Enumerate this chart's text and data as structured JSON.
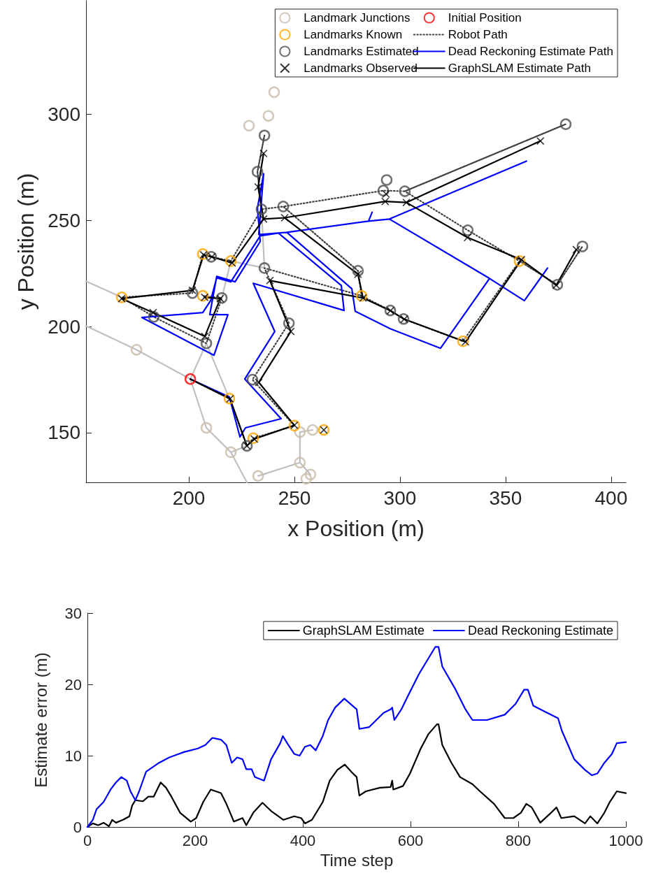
{
  "chart_data": [
    {
      "type": "scatter",
      "xlabel": "x Position (m)",
      "ylabel": "y Position (m)",
      "xlim": [
        151.3,
        407
      ],
      "xticks": [
        200,
        250,
        300,
        350,
        400
      ],
      "ylim": [
        126.6,
        353.6
      ],
      "yticks": [
        150,
        200,
        250,
        300
      ],
      "legend": "top right",
      "series": [
        {
          "type": "line",
          "color": "#c0c0c0",
          "marker": "none",
          "line_style": "solid",
          "x": [
            151.3,
            168.2,
            null,
            151.3,
            175.2,
            200.7,
            219.2,
            null,
            200.7,
            208.3,
            219.2,
            null,
            200.7,
            208.3,
            219.9,
            227.5,
            null,
            219.9,
            227.5,
            null,
            232.8,
            252.6,
            252.6,
            258.6,
            null,
            252.6,
            257.6,
            null,
            219.9,
            215.6,
            null,
            234.4,
            235.8,
            219.9
          ],
          "values": [
            221.4,
            213.8,
            null,
            200.3,
            189.1,
            175.3,
            166.1,
            null,
            175.3,
            192.1,
            166.1,
            null,
            175.3,
            152.3,
            140.8,
            143.8,
            null,
            140.8,
            126.6,
            null,
            129.6,
            135.9,
            150.3,
            151.3,
            null,
            135.9,
            130.3,
            null,
            230.9,
            213.5,
            null,
            255.3,
            227.6,
            230.9
          ]
        },
        {
          "name": "Landmark Junctions",
          "color": "#c8bba8",
          "marker": "circle",
          "x": [
            175.2,
            208.3,
            219.9,
            232.8,
            252.6,
            258.6,
            252.6,
            257.6,
            255.6,
            228.5,
            237.7,
            240.4
          ],
          "values": [
            189.1,
            152.3,
            140.8,
            129.6,
            150.3,
            151.3,
            135.9,
            130.3,
            128.3,
            294.7,
            299.3,
            310.5
          ]
        },
        {
          "name": "Landmarks Known",
          "color": "#ffa500",
          "marker": "circle",
          "x": [
            219.2,
            230.5,
            250.0,
            263.9,
            206.6,
            219.9,
            168.2,
            206.6,
            281.8,
            329.8,
            356.6
          ],
          "values": [
            166.1,
            147.4,
            153.3,
            151.3,
            234.2,
            230.9,
            213.8,
            214.5,
            214.5,
            193.1,
            230.9
          ]
        },
        {
          "name": "Landmarks Estimated",
          "color": "#4d4d4d",
          "marker": "circle",
          "x": [
            235.8,
            232.5,
            234.4,
            210.6,
            235.8,
            201.7,
            215.6,
            244.7,
            293.7,
            292.1,
            302.3,
            280.1,
            378.5,
            332.1,
            374.5,
            386.4,
            183.4,
            208.3,
            227.5,
            230.1,
            247.4,
            295.4,
            301.7
          ],
          "values": [
            290.1,
            273.0,
            255.3,
            232.9,
            227.6,
            215.8,
            213.5,
            256.6,
            269.1,
            264.1,
            263.8,
            226.3,
            295.4,
            245.4,
            219.7,
            237.8,
            204.6,
            192.1,
            143.8,
            175.0,
            201.6,
            207.6,
            203.6
          ]
        },
        {
          "name": "Landmarks Observed",
          "color": "#000000",
          "marker": "cross",
          "x": [
            219.5,
            227.5,
            231.0,
            250.0,
            233.1,
            248.3,
            238.4,
            282.5,
            295.5,
            302.0,
            331.0,
            357.5,
            374.0,
            383.5,
            332.0,
            303.0,
            366.5,
            293.0,
            245.4,
            280.1,
            235.4,
            232.8,
            235.4,
            220.5,
            210.9,
            207.0,
            201.7,
            168.2,
            183.1,
            207.6,
            214.9,
            207.5,
            263.9,
            293.4
          ],
          "values": [
            166.0,
            143.8,
            147.0,
            153.5,
            173.7,
            197.7,
            221.7,
            213.5,
            207.5,
            203.5,
            192.8,
            231.5,
            219.5,
            236.3,
            242.0,
            258.5,
            287.5,
            259.0,
            251.3,
            224.7,
            250.7,
            265.8,
            281.6,
            230.0,
            232.9,
            233.8,
            217.1,
            213.2,
            206.6,
            195.4,
            213.2,
            213.8,
            151.3,
            262.5
          ]
        },
        {
          "name": "Initial Position",
          "color": "#ff0000",
          "marker": "circle",
          "x": [
            200.7
          ],
          "values": [
            175.3
          ]
        },
        {
          "name": "Robot Path",
          "type": "line",
          "color": "#404040",
          "marker": "none",
          "line_style": "dotted",
          "x": [
            200.7,
            219.2,
            227.5,
            230.5,
            250.0,
            230.1,
            247.4,
            235.8,
            281.8,
            295.4,
            301.7,
            329.8,
            356.6,
            374.5,
            386.4,
            374.5,
            356.6,
            332.1,
            302.3,
            378.5,
            302.3,
            292.1,
            244.7,
            280.1,
            281.8,
            280.1,
            244.7,
            234.4,
            232.5,
            235.8,
            232.5,
            234.4,
            219.9,
            210.6,
            206.6,
            201.7,
            168.2,
            183.4,
            208.3,
            215.6,
            206.6
          ],
          "values": [
            175.3,
            166.1,
            143.8,
            147.4,
            153.3,
            175.0,
            201.6,
            227.6,
            214.5,
            207.6,
            203.6,
            193.1,
            230.9,
            219.7,
            237.8,
            219.7,
            230.9,
            245.4,
            263.8,
            295.4,
            263.8,
            264.1,
            256.6,
            226.3,
            214.5,
            226.3,
            256.6,
            255.3,
            273.0,
            290.1,
            273.0,
            255.3,
            230.9,
            232.9,
            234.2,
            215.8,
            213.8,
            204.6,
            192.1,
            213.5,
            214.5
          ]
        },
        {
          "name": "Dead Reckoning Estimate Path",
          "type": "line",
          "color": "#0000ff",
          "marker": "none",
          "line_style": "solid",
          "x": [
            200.7,
            219.2,
            224.2,
            226.8,
            243.7,
            226.5,
            240.7,
            230.5,
            273.5,
            272.2,
            242.4,
            233.8,
            219.9,
            213.2,
            210.3,
            206.6,
            177.8,
            211.9,
            218.5,
            209.9,
            213.2,
            221.9,
            233.8,
            232.5,
            235.4,
            233.1,
            246.4,
            285.1,
            286.8,
            285.1,
            295.0,
            359.9,
            295.0,
            342.4,
            358.9,
            369.9,
            358.9,
            342.4,
            319.2,
            295.4,
            278.8,
            277.2,
            246.4
          ],
          "values": [
            175.3,
            166.8,
            148.0,
            152.3,
            156.6,
            175.3,
            197.7,
            220.4,
            207.6,
            219.4,
            244.1,
            242.8,
            221.1,
            223.0,
            212.2,
            206.6,
            204.3,
            186.5,
            205.6,
            205.6,
            223.7,
            221.1,
            240.1,
            255.9,
            272.0,
            243.4,
            244.4,
            249.7,
            253.9,
            249.7,
            250.7,
            278.0,
            250.7,
            222.7,
            212.2,
            227.6,
            212.2,
            222.7,
            189.8,
            199.0,
            207.2,
            217.8,
            244.4
          ]
        },
        {
          "name": "GraphSLAM Estimate Path",
          "type": "line",
          "color": "#000000",
          "marker": "none",
          "line_style": "solid",
          "x": [
            200.7,
            219.5,
            227.5,
            231.0,
            250.0,
            233.1,
            248.3,
            238.4,
            282.5,
            295.5,
            302.0,
            331.0,
            357.5,
            374.0,
            383.5,
            374.0,
            357.5,
            332.0,
            303.0,
            366.5,
            303.0,
            293.0,
            245.4,
            280.1,
            282.5,
            280.1,
            245.4,
            235.4,
            232.8,
            235.4,
            232.8,
            235.4,
            220.5,
            210.9,
            207.0,
            201.7,
            168.2,
            183.1,
            207.6,
            214.9,
            207.5
          ],
          "values": [
            175.3,
            166.0,
            143.8,
            147.0,
            153.5,
            173.7,
            197.7,
            221.7,
            213.5,
            207.5,
            203.5,
            192.8,
            231.5,
            219.5,
            236.3,
            219.5,
            231.5,
            242.0,
            258.5,
            287.5,
            258.5,
            259.0,
            251.3,
            224.7,
            213.5,
            224.7,
            251.3,
            250.7,
            265.8,
            281.6,
            265.8,
            250.7,
            230.0,
            232.9,
            233.8,
            217.1,
            213.2,
            206.6,
            195.4,
            213.2,
            213.8
          ]
        }
      ]
    },
    {
      "type": "line",
      "xlabel": "Time step",
      "ylabel": "Estimate error (m)",
      "xlim": [
        0,
        1000
      ],
      "xticks": [
        0,
        200,
        400,
        600,
        800,
        1000
      ],
      "ylim": [
        0,
        30
      ],
      "yticks": [
        0,
        10,
        20,
        30
      ],
      "legend": "top right",
      "marker": "none",
      "line_style": "solid",
      "series": [
        {
          "name": "GraphSLAM Estimate",
          "color": "#000000",
          "x": [
            0,
            10,
            20,
            30,
            40,
            46,
            53,
            66,
            78,
            83,
            89,
            103,
            113,
            123,
            136,
            146,
            156,
            172,
            192,
            202,
            215,
            229,
            248,
            258,
            272,
            288,
            295,
            308,
            325,
            341,
            364,
            384,
            397,
            404,
            417,
            437,
            450,
            464,
            478,
            490,
            500,
            505,
            517,
            543,
            563,
            566,
            568,
            586,
            599,
            619,
            633,
            649,
            652,
            659,
            676,
            692,
            715,
            729,
            755,
            775,
            791,
            805,
            815,
            825,
            841,
            861,
            871,
            880,
            904,
            924,
            934,
            947,
            960,
            970,
            983,
            1000
          ],
          "values": [
            0,
            0.5,
            0.25,
            0.6,
            0.1,
            1.0,
            0.6,
            1.0,
            1.5,
            3.0,
            3.75,
            3.6,
            4.25,
            4.25,
            6.25,
            5.5,
            4.25,
            2.0,
            0.75,
            1.25,
            3.5,
            5.25,
            4.75,
            3.25,
            0.75,
            1.25,
            0.25,
            2.0,
            3.4,
            2.25,
            1.0,
            1.5,
            1.25,
            0.5,
            1.0,
            3.5,
            6.5,
            8.0,
            8.75,
            7.75,
            7.0,
            4.4,
            5.0,
            5.5,
            5.6,
            6.5,
            5.25,
            5.75,
            7.5,
            11.0,
            13.0,
            14.4,
            14.4,
            11.5,
            9.0,
            7.0,
            6.0,
            5.0,
            3.25,
            1.25,
            1.25,
            2.0,
            3.25,
            2.75,
            0.6,
            2.0,
            2.75,
            1.25,
            1.5,
            0.5,
            1.5,
            0.5,
            2.0,
            3.5,
            5.0,
            4.75
          ]
        },
        {
          "name": "Dead Reckoning Estimate",
          "color": "#0000ff",
          "x": [
            0,
            10,
            17,
            30,
            43,
            53,
            63,
            73,
            80,
            89,
            96,
            109,
            133,
            152,
            179,
            205,
            219,
            232,
            248,
            258,
            268,
            278,
            288,
            295,
            305,
            311,
            328,
            341,
            358,
            363,
            371,
            384,
            394,
            404,
            414,
            424,
            437,
            447,
            460,
            477,
            500,
            505,
            523,
            550,
            563,
            566,
            570,
            583,
            596,
            616,
            636,
            646,
            652,
            659,
            682,
            702,
            715,
            742,
            775,
            795,
            811,
            818,
            828,
            854,
            874,
            881,
            904,
            924,
            937,
            947,
            960,
            974,
            983,
            1000
          ],
          "values": [
            0,
            1.0,
            2.5,
            3.5,
            5.25,
            6.25,
            7.0,
            6.5,
            5.0,
            3.75,
            5.0,
            7.75,
            9.0,
            9.75,
            10.5,
            11.0,
            11.5,
            12.5,
            12.25,
            11.5,
            9.0,
            9.75,
            9.5,
            8.1,
            8.1,
            7.0,
            6.5,
            9.5,
            11.75,
            12.75,
            11.75,
            10.25,
            10.0,
            11.25,
            11.5,
            10.75,
            12.75,
            15.0,
            16.75,
            18.0,
            16.5,
            13.75,
            14.0,
            16.0,
            16.5,
            16.75,
            15.0,
            16.5,
            18.5,
            21.5,
            24.0,
            25.25,
            25.25,
            22.5,
            19.5,
            16.5,
            15.0,
            15.0,
            15.75,
            17.25,
            19.25,
            19.25,
            17.0,
            16.0,
            15.25,
            13.5,
            9.5,
            8.0,
            7.25,
            7.5,
            9.0,
            10.25,
            11.75,
            11.9
          ]
        }
      ]
    }
  ]
}
